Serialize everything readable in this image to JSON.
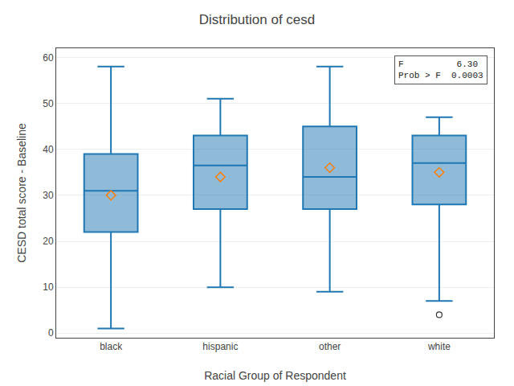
{
  "chart_data": {
    "type": "box",
    "title": "Distribution of cesd",
    "xlabel": "Racial Group of Respondent",
    "ylabel": "CESD total score - Baseline",
    "categories": [
      "black",
      "hispanic",
      "other",
      "white"
    ],
    "q1": [
      22,
      27,
      27,
      28
    ],
    "median": [
      31,
      36.5,
      34,
      37
    ],
    "q3": [
      39,
      43,
      45,
      43
    ],
    "whislo": [
      1,
      10,
      9,
      7
    ],
    "whishi": [
      58,
      51,
      58,
      47
    ],
    "means": [
      30,
      34,
      36,
      35
    ],
    "fliers": [
      [],
      [],
      [],
      [
        4
      ]
    ],
    "ylim": [
      -1,
      62
    ],
    "yticks": [
      0,
      10,
      20,
      30,
      40,
      50,
      60
    ],
    "grid": true,
    "annotations": [
      "F          6.30\nProb > F  0.0003"
    ]
  }
}
